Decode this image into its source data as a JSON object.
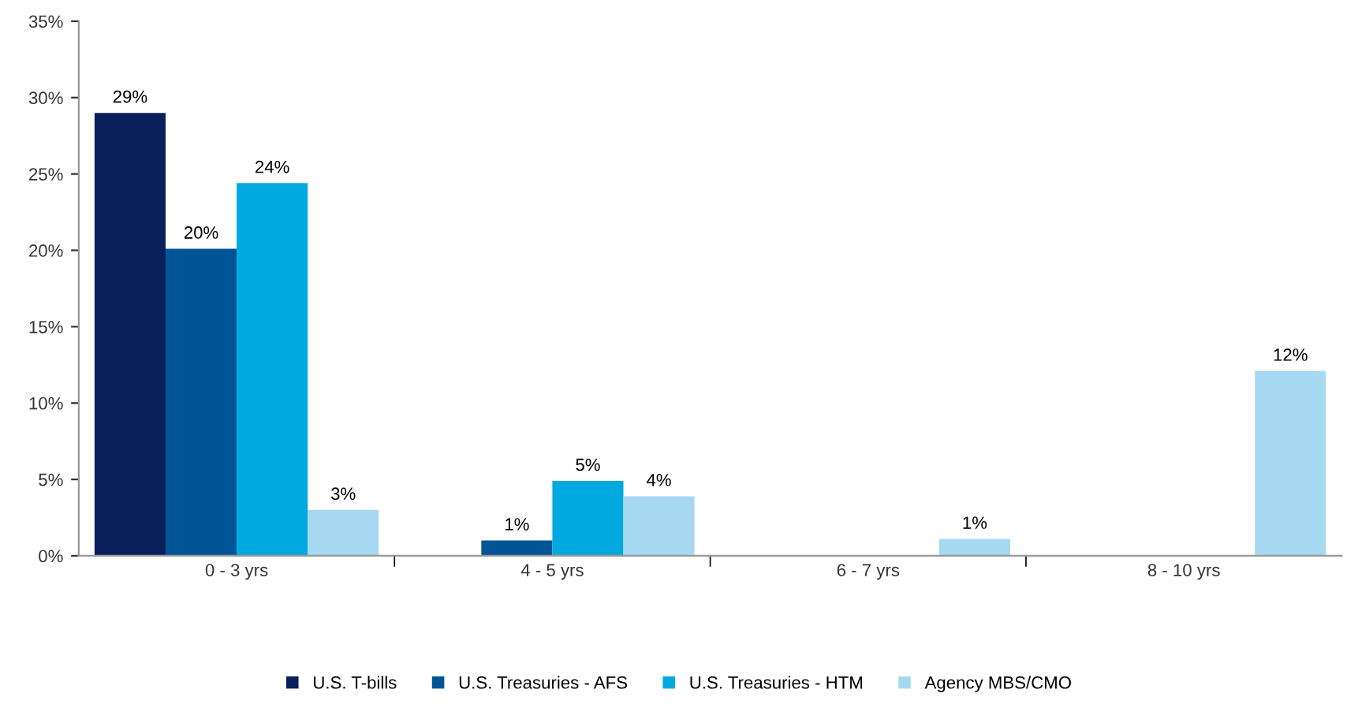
{
  "chart_data": {
    "type": "bar",
    "categories": [
      "0 - 3 yrs",
      "4 - 5 yrs",
      "6 - 7 yrs",
      "8 - 10 yrs"
    ],
    "series": [
      {
        "name": "U.S. T-bills",
        "color": "#0b1f5c",
        "values": [
          29,
          null,
          null,
          null
        ],
        "value_labels": [
          "29%",
          null,
          null,
          null
        ]
      },
      {
        "name": "U.S. Treasuries - AFS",
        "color": "#005596",
        "values": [
          20.1,
          1.0,
          null,
          null
        ],
        "value_labels": [
          "20%",
          "1%",
          null,
          null
        ]
      },
      {
        "name": "U.S. Treasuries - HTM",
        "color": "#00a9e0",
        "values": [
          24.4,
          4.9,
          null,
          null
        ],
        "value_labels": [
          "24%",
          "5%",
          null,
          null
        ]
      },
      {
        "name": "Agency MBS/CMO",
        "color": "#a6d8f2",
        "values": [
          3.0,
          3.9,
          1.1,
          12.1
        ],
        "value_labels": [
          "3%",
          "4%",
          "1%",
          "12%"
        ]
      }
    ],
    "ylim": [
      0,
      35
    ],
    "yticks": [
      {
        "value": 0,
        "label": "0%"
      },
      {
        "value": 5,
        "label": "5%"
      },
      {
        "value": 10,
        "label": "10%"
      },
      {
        "value": 15,
        "label": "15%"
      },
      {
        "value": 20,
        "label": "20%"
      },
      {
        "value": 25,
        "label": "25%"
      },
      {
        "value": 30,
        "label": "30%"
      },
      {
        "value": 35,
        "label": "35%"
      }
    ],
    "grid": false,
    "legend": "bottom"
  }
}
